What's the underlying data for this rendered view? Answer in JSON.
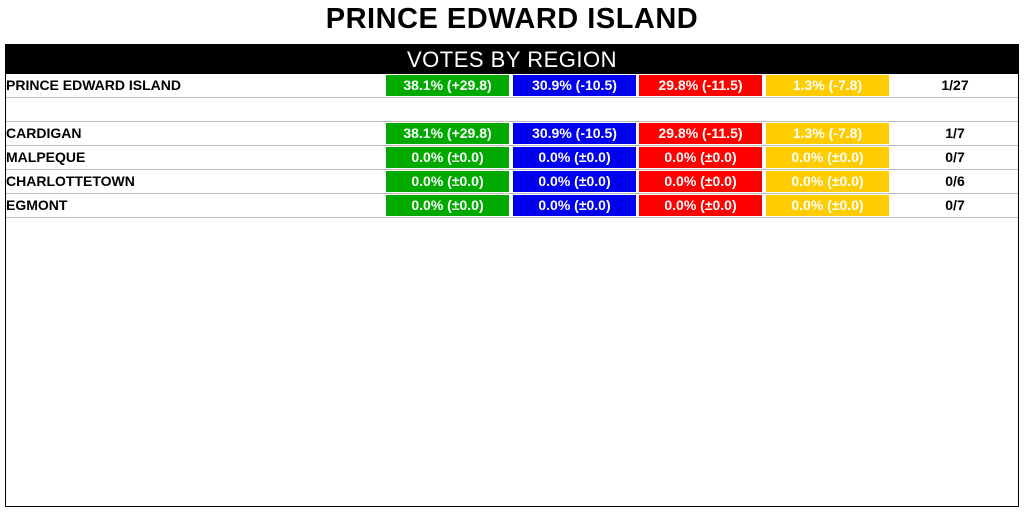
{
  "title": "PRINCE EDWARD ISLAND",
  "panel_header": "VOTES BY REGION",
  "colors": {
    "party1": "#00aa00",
    "party2": "#0000ee",
    "party3": "#ff0000",
    "party4": "#ffcc00"
  },
  "summary": {
    "name": "PRINCE EDWARD ISLAND",
    "p1": "38.1% (+29.8)",
    "p2": "30.9% (-10.5)",
    "p3": "29.8% (-11.5)",
    "p4": "1.3% (-7.8)",
    "seats": "1/27"
  },
  "regions": [
    {
      "name": "CARDIGAN",
      "p1": "38.1% (+29.8)",
      "p2": "30.9% (-10.5)",
      "p3": "29.8% (-11.5)",
      "p4": "1.3% (-7.8)",
      "seats": "1/7"
    },
    {
      "name": "MALPEQUE",
      "p1": "0.0% (±0.0)",
      "p2": "0.0% (±0.0)",
      "p3": "0.0% (±0.0)",
      "p4": "0.0% (±0.0)",
      "seats": "0/7"
    },
    {
      "name": "CHARLOTTETOWN",
      "p1": "0.0% (±0.0)",
      "p2": "0.0% (±0.0)",
      "p3": "0.0% (±0.0)",
      "p4": "0.0% (±0.0)",
      "seats": "0/6"
    },
    {
      "name": "EGMONT",
      "p1": "0.0% (±0.0)",
      "p2": "0.0% (±0.0)",
      "p3": "0.0% (±0.0)",
      "p4": "0.0% (±0.0)",
      "seats": "0/7"
    }
  ]
}
